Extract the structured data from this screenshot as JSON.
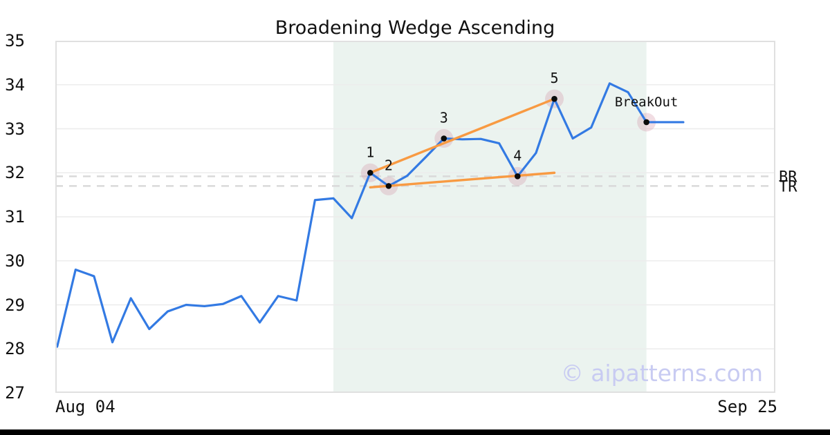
{
  "title": "Broadening Wedge Ascending",
  "watermark": "© aipatterns.com",
  "chart_data": {
    "type": "line",
    "title": "Broadening Wedge Ascending",
    "xlabel": "",
    "ylabel": "",
    "ylim": [
      27,
      35
    ],
    "xlim": [
      -0.1,
      39.0
    ],
    "grid": "horizontal-only",
    "legend": "none",
    "y_ticks": [
      35,
      34,
      33,
      32,
      31,
      30,
      29,
      28,
      27
    ],
    "x_tick_labels": [
      "Aug 04",
      "Sep 25"
    ],
    "price_series": {
      "name": "price",
      "color": "#337ae3",
      "values": [
        28.05,
        29.8,
        29.65,
        28.15,
        29.15,
        28.45,
        28.85,
        29.0,
        28.97,
        29.02,
        29.2,
        28.6,
        29.2,
        29.1,
        31.38,
        31.42,
        30.97,
        32.0,
        31.7,
        31.93,
        32.35,
        32.78,
        32.76,
        32.77,
        32.67,
        31.92,
        32.45,
        33.68,
        32.78,
        33.03,
        34.03,
        33.83,
        33.15,
        33.15,
        33.15
      ]
    },
    "trendlines": [
      {
        "name": "upper-wedge-trendline",
        "color": "#f89a42",
        "x1": 17,
        "y1": 32.0,
        "x2": 27,
        "y2": 33.68
      },
      {
        "name": "lower-wedge-trendline",
        "color": "#f89a42",
        "x1": 17,
        "y1": 31.67,
        "x2": 27,
        "y2": 32.0
      }
    ],
    "hlines": [
      {
        "label": "BR",
        "value": 31.92
      },
      {
        "label": "TR",
        "value": 31.7
      }
    ],
    "shaded_region": {
      "from_index": 15,
      "to_index": 32,
      "color": "#ebf3ef"
    },
    "markers": [
      {
        "label": "1",
        "index": 17,
        "value": 32.0
      },
      {
        "label": "2",
        "index": 18,
        "value": 31.7
      },
      {
        "label": "3",
        "index": 21,
        "value": 32.78
      },
      {
        "label": "4",
        "index": 25,
        "value": 31.92
      },
      {
        "label": "5",
        "index": 27,
        "value": 33.68
      },
      {
        "label": "BreakOut",
        "index": 32,
        "value": 33.15
      }
    ]
  },
  "style": {
    "accent_blue": "#337ae3",
    "accent_orange": "#f89a42",
    "marker_halo": "rgba(213,152,170,0.33)",
    "marker_dot": "#0b0b0b",
    "dashed_line": "#d9d9d9",
    "gridline": "#ececec",
    "frame": "#e0e0e0",
    "shade": "#ebf3ef",
    "watermark_color": "#c8cbf2",
    "footer_bar": "#000000"
  }
}
